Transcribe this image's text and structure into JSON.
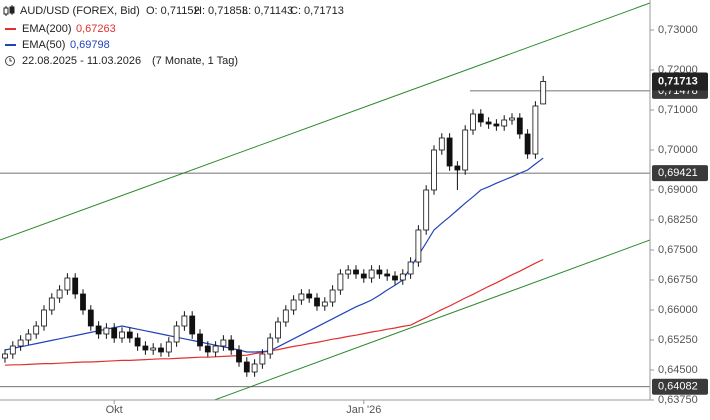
{
  "chart_data": {
    "type": "candlestick",
    "title": "AUD/USD (FOREX, Bid)",
    "ohlc_text": [
      "O: 0,71152",
      "H: 0,71853",
      "L: 0,71143",
      "C: 0,71713"
    ],
    "date_range": "22.08.2025 - 11.03.2026",
    "period": "(7 Monate, 1 Tag)",
    "categories": [
      null,
      null,
      null,
      null,
      null,
      null,
      null,
      null,
      null,
      null,
      null,
      null,
      null,
      null,
      "Okt",
      null,
      null,
      null,
      null,
      null,
      null,
      null,
      null,
      null,
      null,
      null,
      null,
      null,
      null,
      null,
      null,
      null,
      null,
      null,
      null,
      null,
      null,
      null,
      null,
      null,
      null,
      null,
      null,
      null,
      null,
      null,
      "Jan '26",
      null,
      null,
      null,
      null,
      null,
      null,
      null,
      null,
      null,
      null,
      null,
      null,
      null,
      null,
      null,
      null,
      null,
      null,
      null,
      null,
      null,
      null,
      null
    ],
    "open": [
      0.648,
      0.649,
      0.651,
      0.6525,
      0.654,
      0.656,
      0.66,
      0.663,
      0.665,
      0.668,
      0.664,
      0.66,
      0.656,
      0.654,
      0.6555,
      0.653,
      0.6545,
      0.653,
      0.651,
      0.65,
      0.6505,
      0.6495,
      0.652,
      0.656,
      0.6585,
      0.654,
      0.651,
      0.6495,
      0.651,
      0.6525,
      0.65,
      0.647,
      0.6445,
      0.6465,
      0.649,
      0.653,
      0.657,
      0.66,
      0.6625,
      0.664,
      0.663,
      0.661,
      0.662,
      0.665,
      0.669,
      0.67,
      0.669,
      0.668,
      0.67,
      0.669,
      0.6685,
      0.6675,
      0.669,
      0.672,
      0.68,
      0.69,
      0.7,
      0.703,
      0.696,
      0.695,
      0.705,
      0.709,
      0.707,
      0.7065,
      0.706,
      0.7075,
      0.708,
      0.704,
      0.699,
      0.71152
    ],
    "high": [
      0.6502,
      0.6522,
      0.6537,
      0.6552,
      0.6572,
      0.6612,
      0.6642,
      0.6662,
      0.6692,
      0.6692,
      0.6652,
      0.6612,
      0.6572,
      0.6567,
      0.6567,
      0.6557,
      0.6557,
      0.6542,
      0.6522,
      0.6517,
      0.6517,
      0.6532,
      0.6572,
      0.6597,
      0.6597,
      0.6552,
      0.6522,
      0.6522,
      0.6537,
      0.6537,
      0.6512,
      0.6482,
      0.6477,
      0.6502,
      0.6542,
      0.6582,
      0.6612,
      0.6637,
      0.6652,
      0.6652,
      0.6642,
      0.6632,
      0.6662,
      0.6702,
      0.6712,
      0.6712,
      0.6702,
      0.6712,
      0.6712,
      0.6702,
      0.6697,
      0.6702,
      0.6732,
      0.6812,
      0.6912,
      0.7012,
      0.7042,
      0.7042,
      0.6972,
      0.7062,
      0.7102,
      0.7102,
      0.7082,
      0.7077,
      0.7087,
      0.7092,
      0.7092,
      0.7052,
      0.7122,
      0.71853
    ],
    "low": [
      0.6468,
      0.6478,
      0.6498,
      0.6513,
      0.6528,
      0.6548,
      0.6588,
      0.6618,
      0.6638,
      0.6628,
      0.6588,
      0.6548,
      0.6528,
      0.6528,
      0.6518,
      0.6518,
      0.6518,
      0.6498,
      0.6488,
      0.6488,
      0.6483,
      0.6483,
      0.6508,
      0.6548,
      0.6528,
      0.6498,
      0.6483,
      0.6483,
      0.6498,
      0.6488,
      0.6458,
      0.6433,
      0.6433,
      0.6453,
      0.6478,
      0.6518,
      0.6558,
      0.6588,
      0.6613,
      0.6618,
      0.6598,
      0.6598,
      0.6608,
      0.6638,
      0.6678,
      0.6678,
      0.6668,
      0.6668,
      0.6678,
      0.6673,
      0.6663,
      0.6663,
      0.6678,
      0.6708,
      0.6788,
      0.6888,
      0.6988,
      0.6948,
      0.69,
      0.6938,
      0.7038,
      0.7058,
      0.7053,
      0.7048,
      0.7048,
      0.7063,
      0.7028,
      0.6978,
      0.6978,
      0.71143
    ],
    "close": [
      0.649,
      0.651,
      0.6525,
      0.654,
      0.656,
      0.66,
      0.663,
      0.665,
      0.668,
      0.664,
      0.66,
      0.656,
      0.654,
      0.6555,
      0.653,
      0.6545,
      0.653,
      0.651,
      0.65,
      0.6505,
      0.6495,
      0.652,
      0.656,
      0.6585,
      0.654,
      0.651,
      0.6495,
      0.651,
      0.6525,
      0.65,
      0.647,
      0.6445,
      0.6465,
      0.649,
      0.653,
      0.657,
      0.66,
      0.6625,
      0.664,
      0.663,
      0.661,
      0.662,
      0.665,
      0.669,
      0.67,
      0.669,
      0.668,
      0.67,
      0.669,
      0.6685,
      0.6675,
      0.669,
      0.672,
      0.68,
      0.69,
      0.7,
      0.703,
      0.696,
      0.695,
      0.705,
      0.709,
      0.707,
      0.7065,
      0.706,
      0.7075,
      0.708,
      0.704,
      0.699,
      0.711,
      0.71713
    ],
    "last_price_label": "0,71713",
    "series": [
      {
        "name": "EMA(200)",
        "color": "#e03030",
        "value_label": "0,67263",
        "values": [
          0.6462,
          0.6463,
          0.6463,
          0.6464,
          0.6465,
          0.6466,
          0.6466,
          0.6467,
          0.6468,
          0.6469,
          0.647,
          0.647,
          0.6471,
          0.6472,
          0.6473,
          0.6474,
          0.6474,
          0.6475,
          0.6476,
          0.6477,
          0.6478,
          0.6478,
          0.6479,
          0.648,
          0.6481,
          0.6482,
          0.6482,
          0.6483,
          0.6484,
          0.6485,
          0.6486,
          0.6487,
          0.6491,
          0.6494,
          0.6498,
          0.6501,
          0.6505,
          0.6509,
          0.6512,
          0.6516,
          0.6519,
          0.6523,
          0.6527,
          0.653,
          0.6534,
          0.6537,
          0.6541,
          0.6545,
          0.6548,
          0.6552,
          0.6555,
          0.6559,
          0.6562,
          0.6572,
          0.6581,
          0.6591,
          0.6601,
          0.661,
          0.662,
          0.663,
          0.6639,
          0.6649,
          0.6659,
          0.6668,
          0.6678,
          0.6688,
          0.6697,
          0.6707,
          0.6717,
          0.67263
        ]
      },
      {
        "name": "EMA(50)",
        "color": "#2244bb",
        "value_label": "0,69798",
        "values": [
          0.65,
          0.6504,
          0.6508,
          0.6512,
          0.6516,
          0.652,
          0.6524,
          0.6528,
          0.6532,
          0.6536,
          0.654,
          0.6544,
          0.6548,
          0.6552,
          0.6556,
          0.656,
          0.6556,
          0.6552,
          0.6548,
          0.6544,
          0.654,
          0.6536,
          0.6532,
          0.6528,
          0.6524,
          0.652,
          0.6516,
          0.6512,
          0.6508,
          0.6504,
          0.65,
          0.6495,
          0.6495,
          0.6496,
          0.6498,
          0.6508,
          0.6518,
          0.6528,
          0.6538,
          0.6548,
          0.6558,
          0.6568,
          0.6578,
          0.6588,
          0.6598,
          0.6608,
          0.6616,
          0.6625,
          0.6637,
          0.665,
          0.6662,
          0.6675,
          0.6706,
          0.6737,
          0.6768,
          0.68,
          0.6817,
          0.6833,
          0.685,
          0.6867,
          0.6883,
          0.69,
          0.6908,
          0.6917,
          0.6925,
          0.6933,
          0.6942,
          0.695,
          0.6965,
          0.69798
        ]
      }
    ],
    "levels": [
      {
        "value": 0.71478,
        "label": "0,71478"
      },
      {
        "value": 0.69421,
        "label": "0,69421"
      },
      {
        "value": 0.64082,
        "label": "0,64082"
      }
    ],
    "ylim": [
      0.6375,
      0.7375
    ],
    "yticks": [
      {
        "value": 0.73,
        "label": "0,73000"
      },
      {
        "value": 0.72,
        "label": "0,72000"
      },
      {
        "value": 0.71,
        "label": "0,71000"
      },
      {
        "value": 0.7,
        "label": "0,70000"
      },
      {
        "value": 0.69,
        "label": "0,69000"
      },
      {
        "value": 0.6825,
        "label": "0,68250"
      },
      {
        "value": 0.675,
        "label": "0,67500"
      },
      {
        "value": 0.6675,
        "label": "0,66750"
      },
      {
        "value": 0.66,
        "label": "0,66000"
      },
      {
        "value": 0.6525,
        "label": "0,65250"
      },
      {
        "value": 0.645,
        "label": "0,64500"
      },
      {
        "value": 0.6375,
        "label": "0,63750"
      }
    ]
  }
}
